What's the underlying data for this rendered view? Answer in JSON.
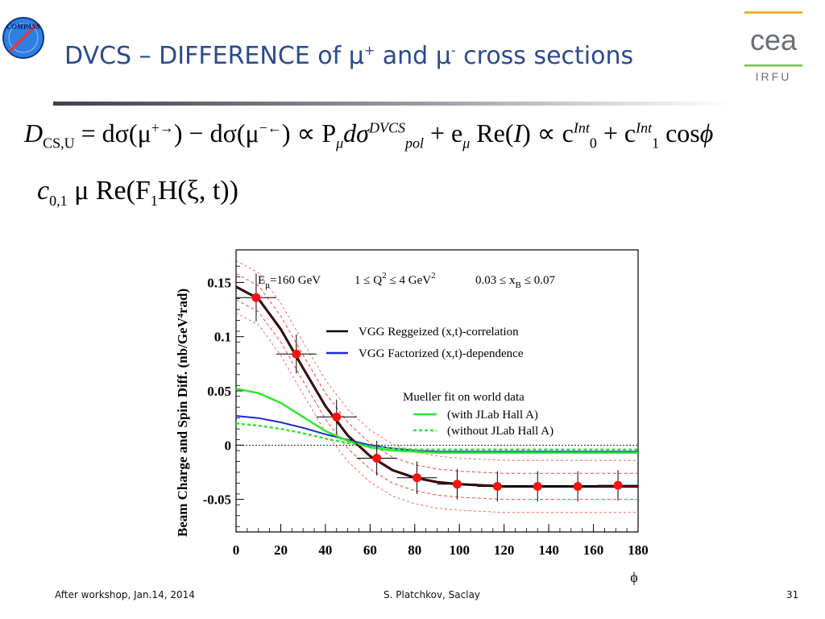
{
  "header": {
    "logo_text": "COMPASS",
    "title_prefix": "DVCS – DIFFERENCE of ",
    "mu": "μ",
    "plus": "+",
    "and": " and ",
    "minus": "-",
    "title_suffix": " cross sections",
    "cea_logo_text": "cea",
    "irfu_text": "IRFU"
  },
  "formulas": {
    "line1": {
      "D": "D",
      "D_sub": "CS,U",
      "eq": " = dσ(μ",
      "arrow1": "+→",
      "mid": ") − dσ(μ",
      "arrow2": "−←",
      "rest1": ") ∝ P",
      "P_sub": "μ",
      "dsig": "dσ",
      "dvcs_sup": "DVCS",
      "pol_sub": "pol",
      "plus_e": " + e",
      "e_sub": "μ",
      "re": " Re(",
      "I": "I",
      "close": ") ∝ c",
      "c0_sub": "0",
      "c0_sup": "Int",
      "plus_c1": " + c",
      "c1_sub": "1",
      "c1_sup": "Int",
      "cos": " cos",
      "phi": "ϕ"
    },
    "line2": {
      "c": "c",
      "c_sub": "0,1",
      "rest": " μ Re(F",
      "F_sub": "1",
      "tail": "H(ξ, t))"
    }
  },
  "footer": {
    "left": "After workshop, Jan.14, 2014",
    "center": "S. Platchkov, Saclay",
    "page": "31"
  },
  "chart_data": {
    "type": "line",
    "title": "",
    "header_text": {
      "e_label": "E",
      "e_sub": "μ",
      "e_value": "=160 GeV",
      "q2_text": "1 ≤  Q",
      "q2_sup": "2",
      "q2_mid": "≤  4 GeV",
      "q2_unit_sup": "2",
      "xb_text": "0.03 ≤  x",
      "xb_sub": "B",
      "xb_tail": "≤ 0.07"
    },
    "xlabel": "ϕ",
    "ylabel": "Beam Charge and Spin Diff. (nb/GeV⁴rad)",
    "xlim": [
      0,
      180
    ],
    "ylim": [
      -0.08,
      0.18
    ],
    "x_ticks": [
      0,
      20,
      40,
      60,
      80,
      100,
      120,
      140,
      160,
      180
    ],
    "y_ticks": [
      0.15,
      0.1,
      0.05,
      0,
      -0.05
    ],
    "y_tick_labels": [
      "0.15",
      "0.1",
      "0.05",
      "0",
      "-0.05"
    ],
    "legend": {
      "vgg_regge": "VGG Reggeized (x,t)-correlation",
      "vgg_fact": "VGG Factorized (x,t)-dependence",
      "mueller_title": "Mueller fit on world data",
      "with_jlab": "(with JLab Hall A)",
      "without_jlab": "(without JLab Hall A)"
    },
    "colors": {
      "regge": "#000000",
      "fact": "#1a2ad0",
      "with_jlab": "#2ee82e",
      "without_jlab": "#2ee82e",
      "points": "#ff1010",
      "band": "#ff4040",
      "fit": "#8b0000"
    },
    "data_points": {
      "x": [
        9,
        27,
        45,
        63,
        81,
        99,
        117,
        135,
        153,
        171
      ],
      "y": [
        0.136,
        0.084,
        0.026,
        -0.012,
        -0.03,
        -0.036,
        -0.038,
        -0.038,
        -0.038,
        -0.037
      ],
      "x_err": [
        9,
        9,
        9,
        9,
        9,
        9,
        9,
        9,
        9,
        9
      ],
      "y_err": [
        0.022,
        0.018,
        0.016,
        0.016,
        0.015,
        0.014,
        0.014,
        0.014,
        0.014,
        0.014
      ]
    },
    "series": [
      {
        "name": "VGG Reggeized (x,t)-correlation",
        "x": [
          0,
          10,
          20,
          30,
          40,
          50,
          60,
          70,
          80,
          90,
          100,
          110,
          120,
          140,
          160,
          180
        ],
        "y": [
          0.146,
          0.135,
          0.107,
          0.071,
          0.036,
          0.009,
          -0.01,
          -0.023,
          -0.03,
          -0.034,
          -0.036,
          -0.037,
          -0.038,
          -0.038,
          -0.038,
          -0.038
        ]
      },
      {
        "name": "VGG Factorized (x,t)-dependence",
        "x": [
          0,
          10,
          20,
          30,
          40,
          50,
          60,
          70,
          80,
          90,
          100,
          120,
          140,
          160,
          180
        ],
        "y": [
          0.027,
          0.025,
          0.021,
          0.016,
          0.01,
          0.005,
          0.0,
          -0.003,
          -0.005,
          -0.006,
          -0.006,
          -0.006,
          -0.006,
          -0.006,
          -0.006
        ]
      },
      {
        "name": "(with JLab Hall A)",
        "x": [
          0,
          10,
          20,
          30,
          40,
          50,
          60,
          70,
          80,
          90,
          100,
          120,
          140,
          160,
          180
        ],
        "y": [
          0.052,
          0.048,
          0.039,
          0.026,
          0.013,
          0.004,
          -0.002,
          -0.005,
          -0.006,
          -0.007,
          -0.007,
          -0.007,
          -0.007,
          -0.007,
          -0.007
        ]
      },
      {
        "name": "(without JLab Hall A)",
        "x": [
          0,
          10,
          20,
          30,
          40,
          50,
          60,
          70,
          80,
          90,
          100,
          120,
          140,
          160,
          180
        ],
        "y": [
          0.02,
          0.018,
          0.015,
          0.011,
          0.006,
          0.002,
          -0.001,
          -0.003,
          -0.004,
          -0.004,
          -0.004,
          -0.004,
          -0.004,
          -0.004,
          -0.004
        ]
      }
    ],
    "band_halfwidth": 0.012
  }
}
